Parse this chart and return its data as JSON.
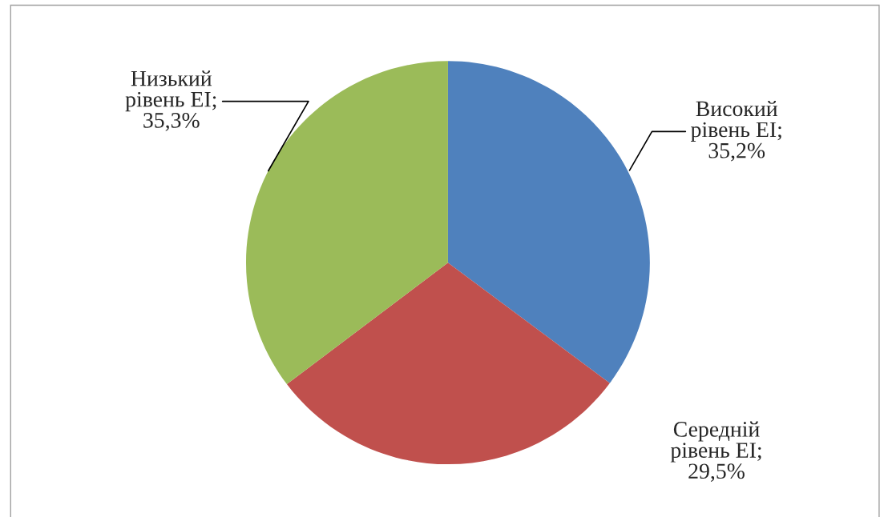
{
  "chart_data": {
    "type": "pie",
    "categories": [
      "Високий рівень EI",
      "Середній рівень EI",
      "Низький рівень EI"
    ],
    "values": [
      35.2,
      29.5,
      35.3
    ],
    "value_labels": [
      "; 35,2%",
      "; 29,5%",
      "; 35,3%"
    ],
    "colors": [
      "#4f81bd",
      "#c0504d",
      "#9bbb59"
    ],
    "legend": false
  }
}
